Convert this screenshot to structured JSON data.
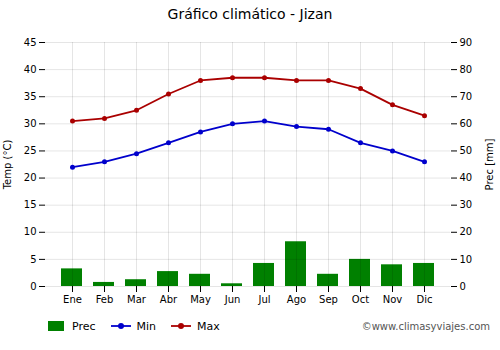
{
  "chart_data": {
    "type": "bar",
    "title": "Gráfico climático - Jizan",
    "categories": [
      "Ene",
      "Feb",
      "Mar",
      "Abr",
      "May",
      "Jun",
      "Jul",
      "Ago",
      "Sep",
      "Oct",
      "Nov",
      "Dic"
    ],
    "series": [
      {
        "name": "Prec",
        "type": "bar",
        "axis": "y2",
        "color": "#008000",
        "values": [
          6.5,
          1.5,
          2.5,
          5.5,
          4.5,
          1.0,
          8.5,
          16.5,
          4.5,
          10.0,
          8.0,
          8.5
        ]
      },
      {
        "name": "Min",
        "type": "line",
        "marker": "circle",
        "color": "#0000cc",
        "values": [
          22.0,
          23.0,
          24.5,
          26.5,
          28.5,
          30.0,
          30.5,
          29.5,
          29.0,
          26.5,
          25.0,
          23.0
        ]
      },
      {
        "name": "Max",
        "type": "line",
        "marker": "circle",
        "color": "#aa0000",
        "values": [
          30.5,
          31.0,
          32.5,
          35.5,
          38.0,
          38.5,
          38.5,
          38.0,
          38.0,
          36.5,
          33.5,
          31.5
        ]
      }
    ],
    "ylabel": "Temp (°C)",
    "y2label": "Prec [mm]",
    "ylim": [
      0,
      45
    ],
    "yticks": [
      0,
      5,
      10,
      15,
      20,
      25,
      30,
      35,
      40,
      45
    ],
    "y2lim": [
      0,
      90
    ],
    "y2ticks": [
      0,
      10,
      20,
      30,
      40,
      50,
      60,
      70,
      80,
      90
    ],
    "grid": true,
    "legend": "bottom",
    "annotations": [
      "©www.climasyviajes.com"
    ]
  }
}
